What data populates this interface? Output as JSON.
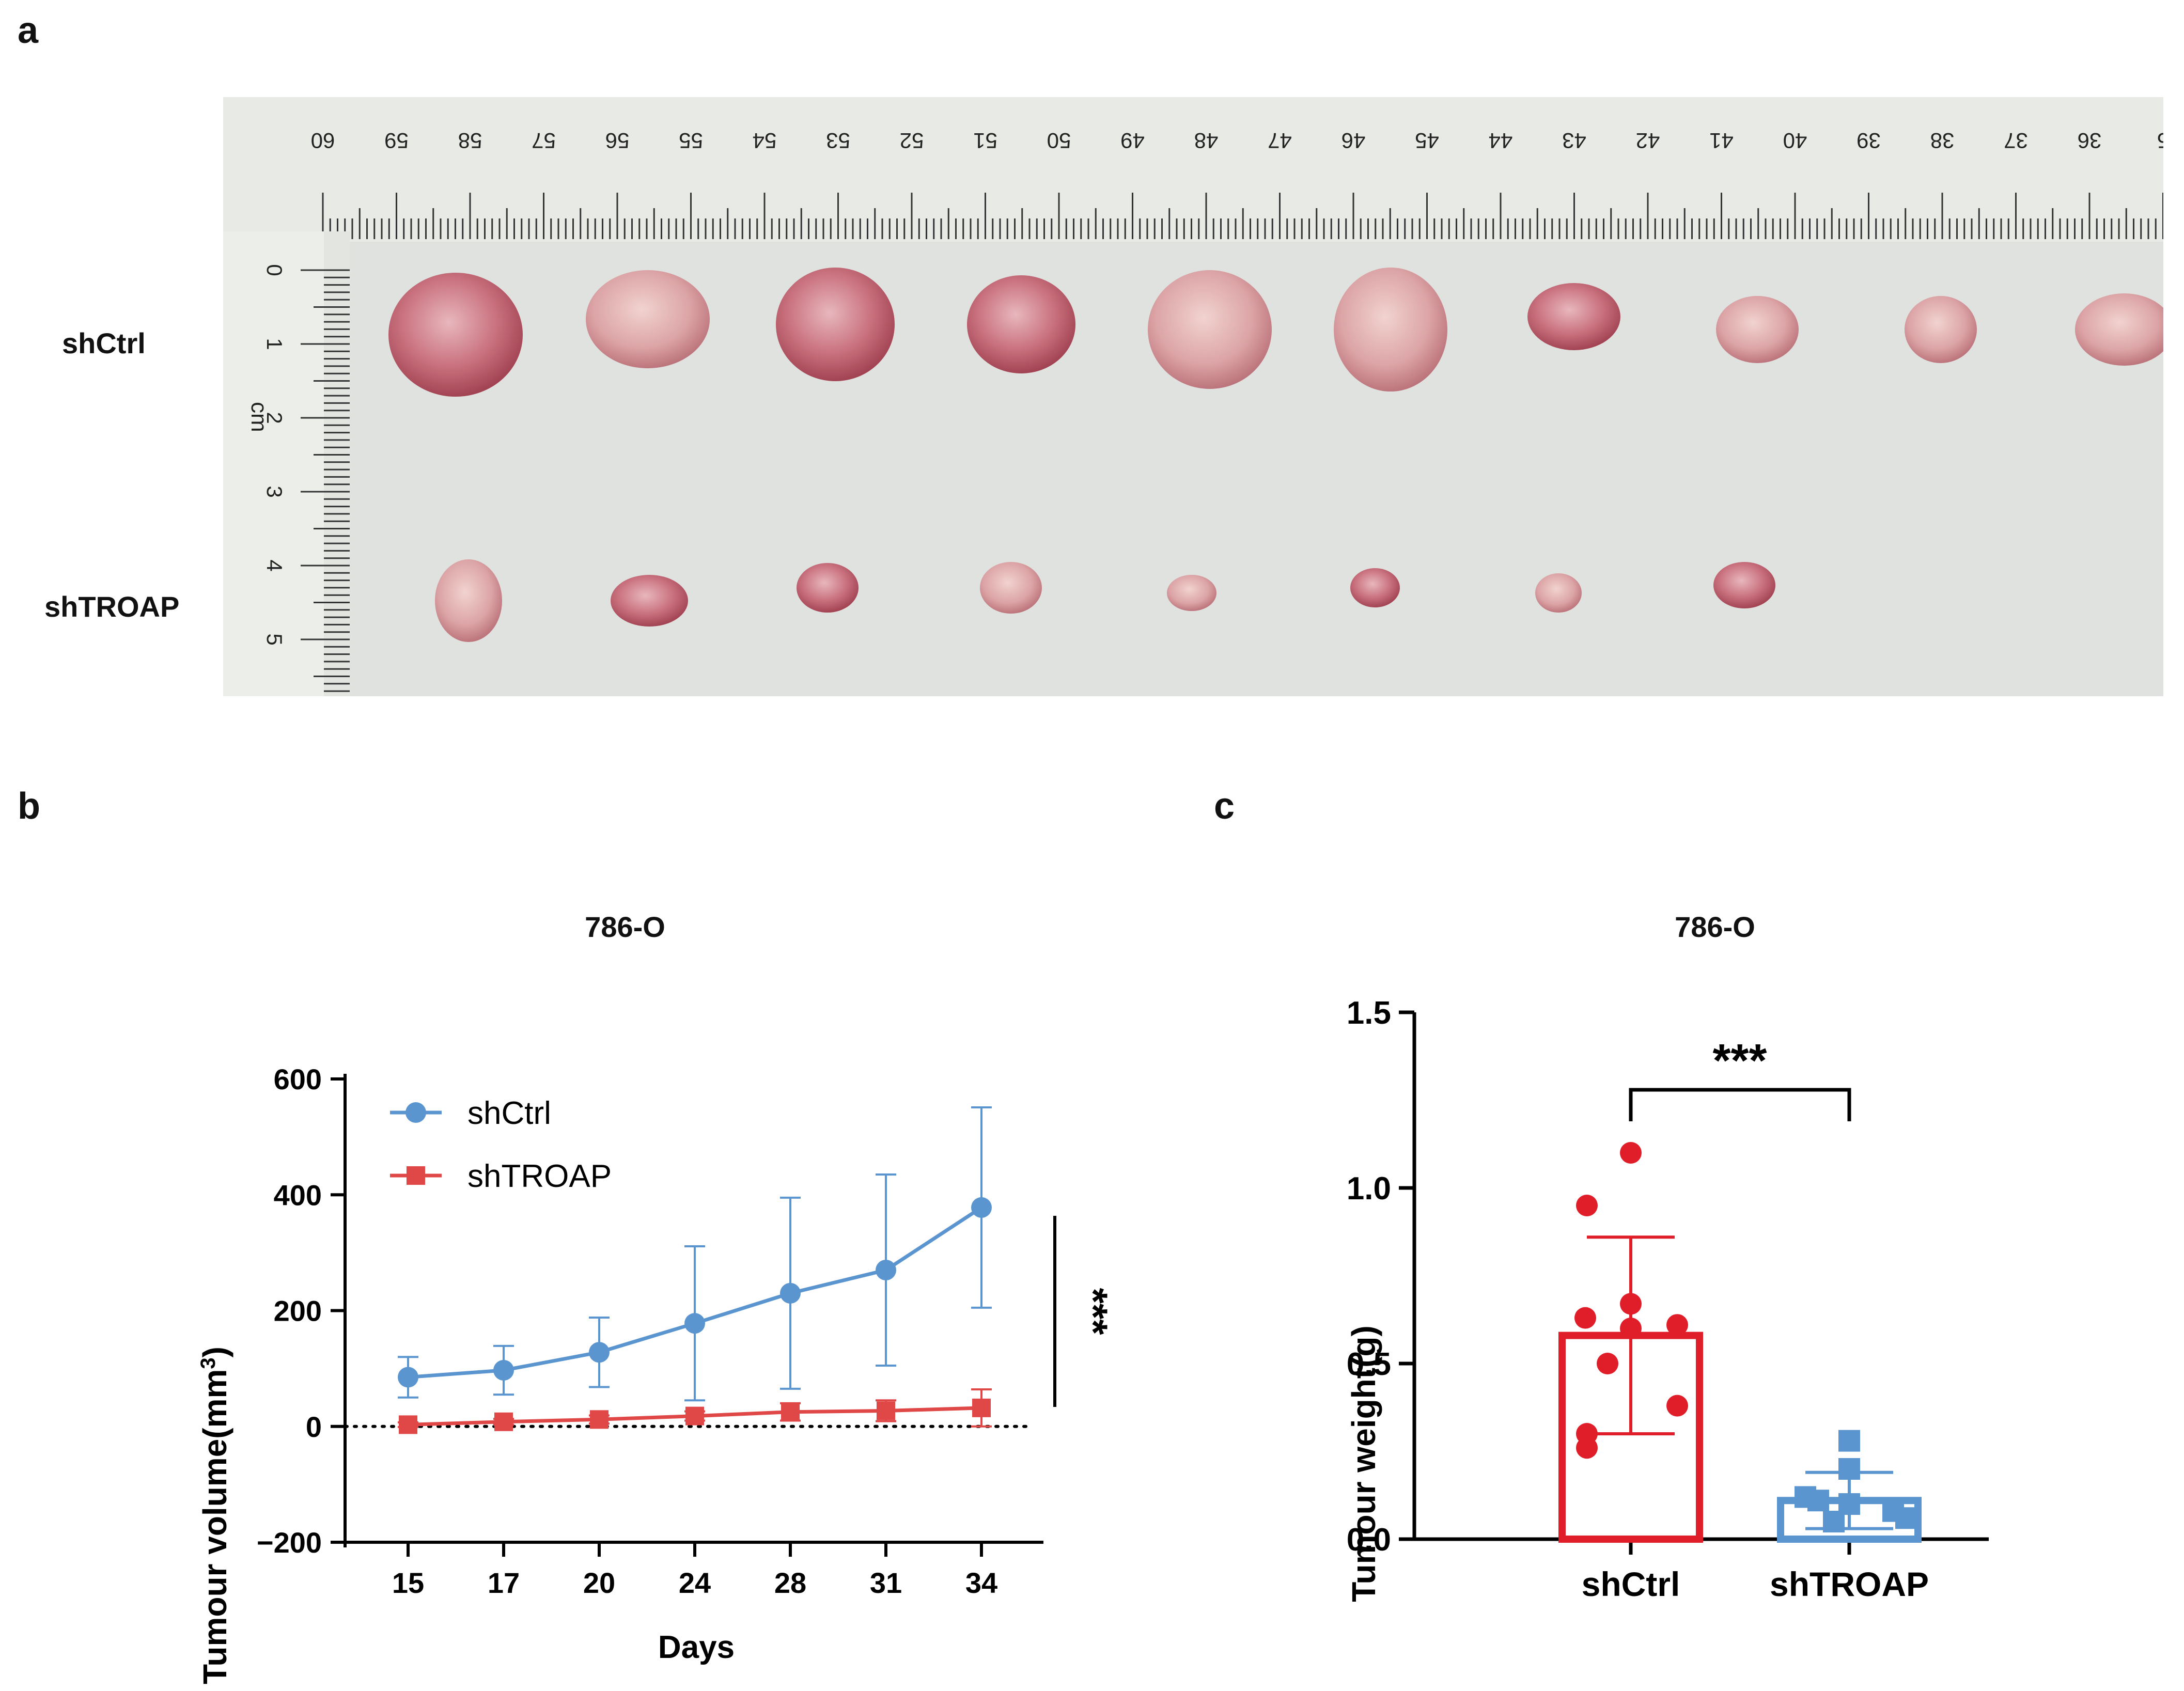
{
  "panels": {
    "a": {
      "letter": "a",
      "row_labels": [
        "shCtrl",
        "shTROAP"
      ],
      "ruler_top_ticks": [
        "60",
        "59",
        "58",
        "57",
        "56",
        "55",
        "54",
        "53",
        "52",
        "51",
        "50",
        "49",
        "48",
        "47",
        "46",
        "45",
        "44",
        "43",
        "42",
        "41",
        "40",
        "39",
        "38",
        "37",
        "36",
        "5"
      ],
      "ruler_left_ticks": [
        "0",
        "1",
        "2",
        "3",
        "4",
        "5"
      ],
      "ruler_left_unit": "cm",
      "tumours": {
        "shCtrl": 10,
        "shTROAP": 8
      }
    },
    "b": {
      "letter": "b"
    },
    "c": {
      "letter": "c"
    }
  },
  "chart_data": [
    {
      "type": "line",
      "title": "786-O",
      "xlabel": "Days",
      "ylabel": "Tumour volume(mm3)",
      "x": [
        15,
        17,
        20,
        24,
        28,
        31,
        34
      ],
      "ylim": [
        -200,
        600
      ],
      "yticks": [
        -200,
        0,
        200,
        400,
        600
      ],
      "legend_position": "top-left",
      "series": [
        {
          "name": "shCtrl",
          "color": "#5b95d0",
          "marker": "circle",
          "values": [
            85,
            97,
            128,
            178,
            230,
            270,
            378
          ],
          "error": [
            35,
            42,
            60,
            133,
            165,
            165,
            173
          ]
        },
        {
          "name": "shTROAP",
          "color": "#e04848",
          "marker": "square",
          "values": [
            3,
            8,
            12,
            18,
            25,
            27,
            32
          ],
          "error": [
            4,
            5,
            7,
            8,
            15,
            18,
            32
          ]
        }
      ],
      "baseline": 0,
      "significance": "***"
    },
    {
      "type": "bar",
      "title": "786-O",
      "ylabel": "Tumour weight(g)",
      "categories": [
        "shCtrl",
        "shTROAP"
      ],
      "values": [
        0.58,
        0.11
      ],
      "error": [
        0.28,
        0.08
      ],
      "ylim": [
        0,
        1.5
      ],
      "yticks": [
        "0.0",
        "0.5",
        "1.0",
        "1.5"
      ],
      "points": [
        [
          1.1,
          0.95,
          0.67,
          0.63,
          0.61,
          0.6,
          0.5,
          0.38,
          0.3,
          0.26
        ],
        [
          0.28,
          0.2,
          0.12,
          0.11,
          0.1,
          0.08,
          0.06,
          0.05
        ]
      ],
      "colors": [
        "#e01e2a",
        "#5b95d0"
      ],
      "significance": "***"
    }
  ]
}
